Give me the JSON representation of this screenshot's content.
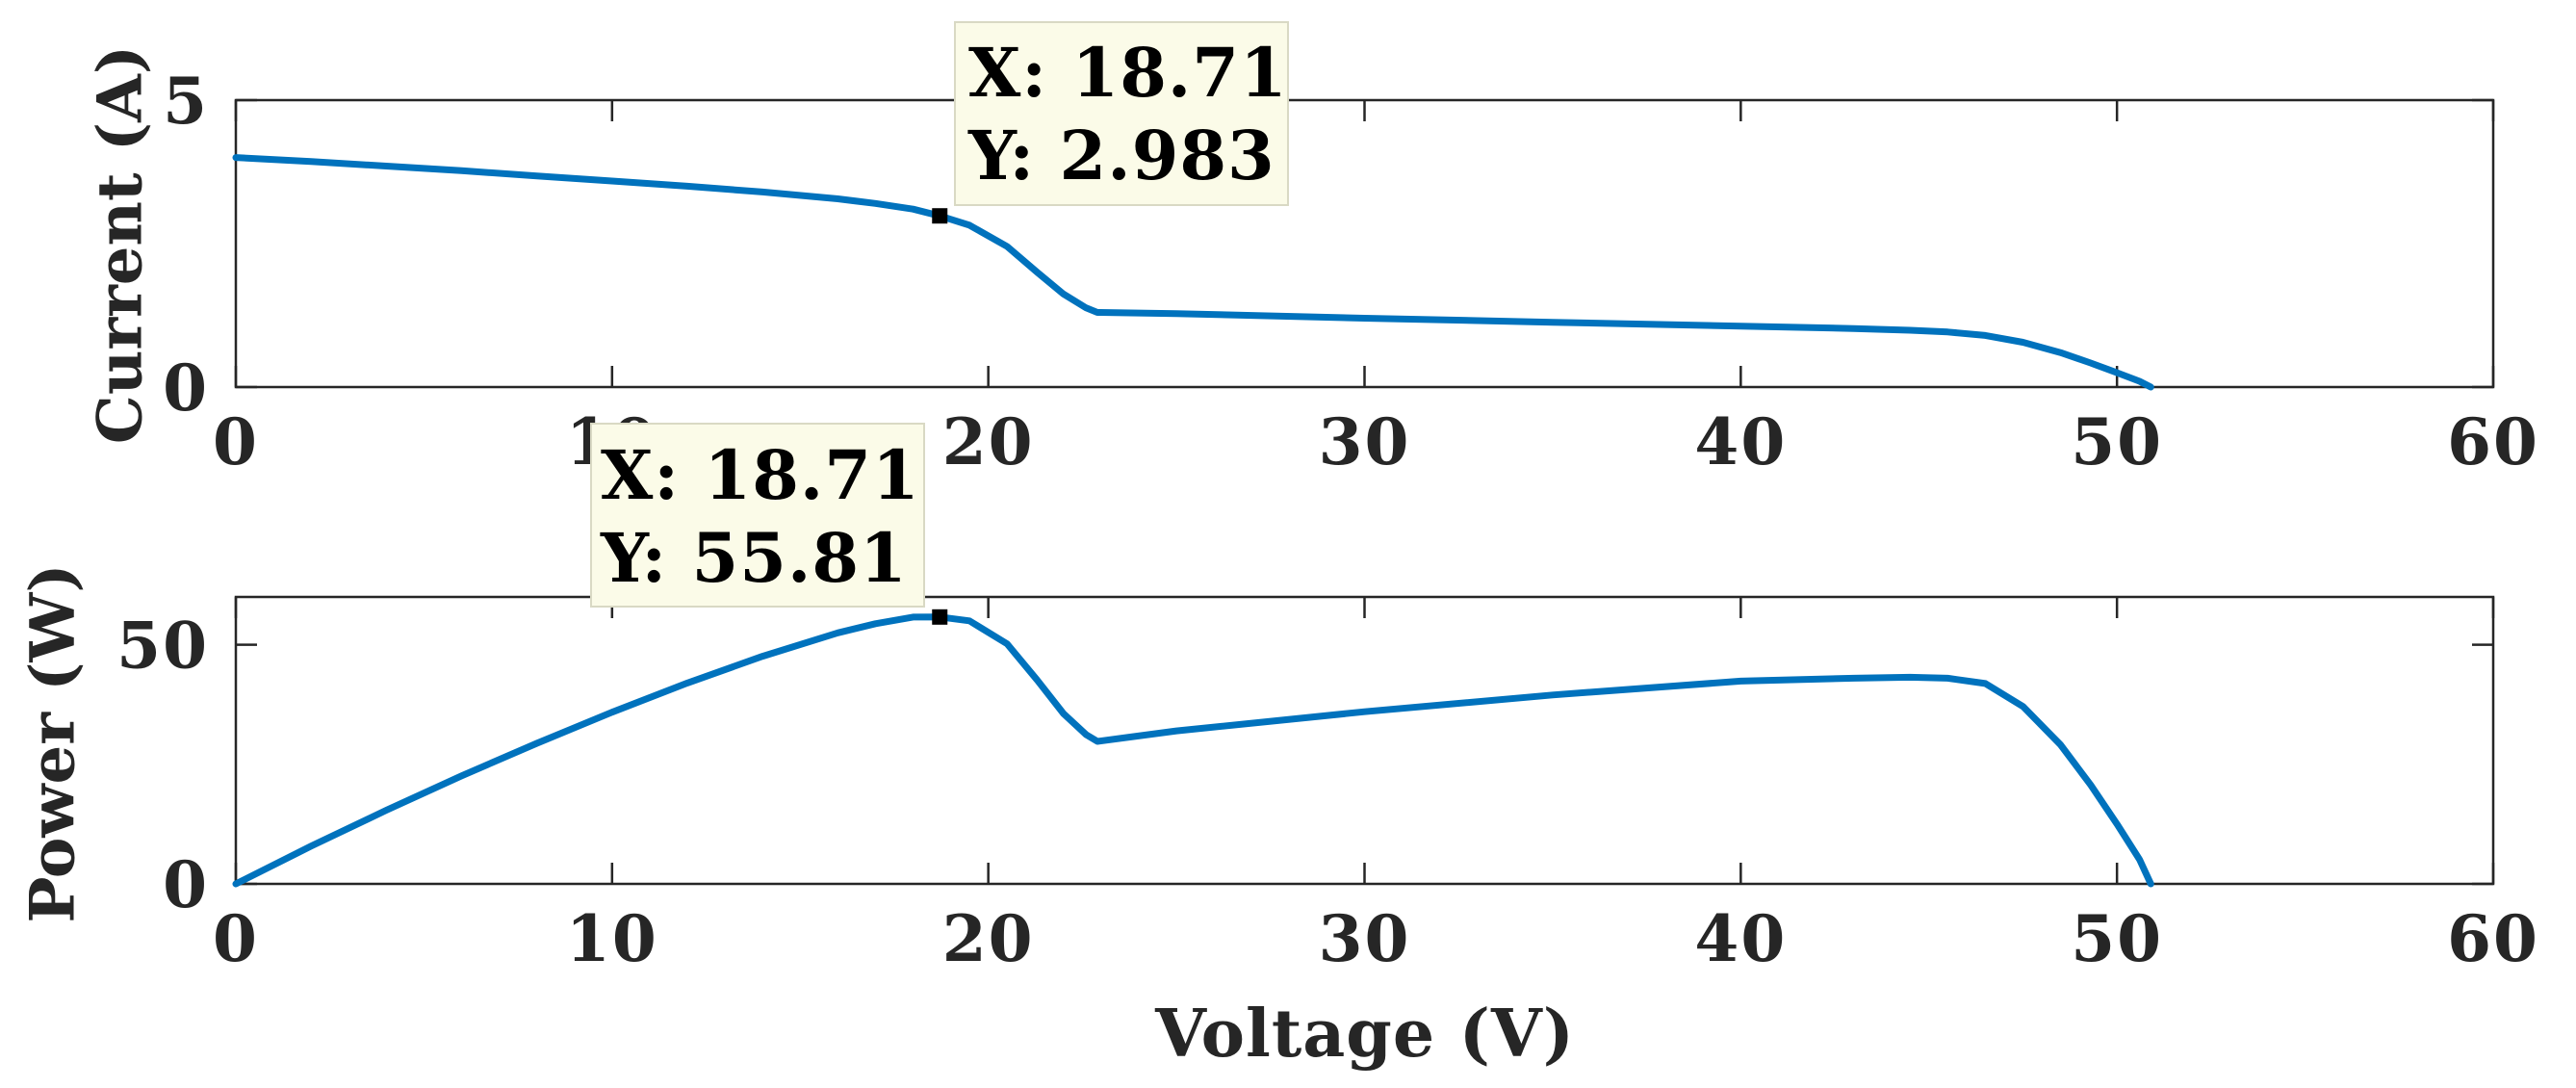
{
  "chart_data": [
    {
      "type": "line",
      "ylabel": "Current (A)",
      "xlabel": "",
      "xlim": [
        0,
        60
      ],
      "ylim": [
        0,
        5
      ],
      "x_ticks": [
        "0",
        "10",
        "20",
        "30",
        "40",
        "50",
        "60"
      ],
      "y_ticks": [
        "0",
        "5"
      ],
      "grid": false,
      "series": [
        {
          "color": "#0072BD",
          "x": [
            0,
            2,
            4,
            6,
            8,
            10,
            12,
            14,
            16,
            17,
            18,
            18.71,
            19.5,
            20.5,
            21.3,
            22,
            22.6,
            22.9,
            25,
            30,
            35,
            40,
            43,
            44.5,
            45.5,
            46.5,
            47.5,
            48.5,
            49.3,
            50,
            50.6,
            50.9
          ],
          "y": [
            4.0,
            3.93,
            3.85,
            3.77,
            3.68,
            3.59,
            3.5,
            3.4,
            3.28,
            3.2,
            3.1,
            2.983,
            2.82,
            2.45,
            2.0,
            1.62,
            1.38,
            1.3,
            1.28,
            1.2,
            1.13,
            1.06,
            1.02,
            0.99,
            0.96,
            0.9,
            0.78,
            0.6,
            0.42,
            0.25,
            0.1,
            0.0
          ]
        }
      ],
      "datatip": {
        "x": 18.71,
        "y": 2.983,
        "x_text": "X: 18.71",
        "y_text": "Y: 2.983"
      }
    },
    {
      "type": "line",
      "ylabel": "Power (W)",
      "xlabel": "Voltage (V)",
      "xlim": [
        0,
        60
      ],
      "ylim": [
        0,
        60
      ],
      "x_ticks": [
        "0",
        "10",
        "20",
        "30",
        "40",
        "50",
        "60"
      ],
      "y_ticks": [
        "0",
        "50"
      ],
      "grid": false,
      "series": [
        {
          "color": "#0072BD",
          "x": [
            0,
            2,
            4,
            6,
            8,
            10,
            12,
            14,
            16,
            17,
            18,
            18.71,
            19.5,
            20.5,
            21.3,
            22,
            22.6,
            22.9,
            25,
            30,
            35,
            40,
            43,
            44.5,
            45.5,
            46.5,
            47.5,
            48.5,
            49.3,
            50,
            50.6,
            50.9
          ],
          "y": [
            0,
            7.9,
            15.4,
            22.6,
            29.4,
            35.9,
            42.0,
            47.6,
            52.5,
            54.4,
            55.8,
            55.81,
            55.0,
            50.2,
            42.6,
            35.6,
            31.2,
            29.8,
            32.0,
            36.0,
            39.5,
            42.4,
            43.0,
            43.2,
            43.0,
            41.9,
            37.1,
            29.1,
            20.7,
            12.5,
            5.1,
            0.0
          ]
        }
      ],
      "datatip": {
        "x": 18.71,
        "y": 55.81,
        "x_text": "X: 18.71",
        "y_text": "Y: 55.81"
      }
    }
  ]
}
